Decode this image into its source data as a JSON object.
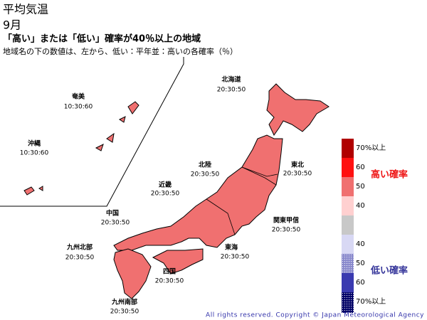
{
  "header": {
    "title": "平均気温",
    "month": "9月",
    "subtitle": "「高い」または「低い」確率が40％以上の地域",
    "note": "地域名の下の数値は、左から、低い：平年並：高いの各確率（％）"
  },
  "regions": [
    {
      "name": "北海道",
      "probs": "20:30:50"
    },
    {
      "name": "東北",
      "probs": "20:30:50"
    },
    {
      "name": "関東甲信",
      "probs": "20:30:50"
    },
    {
      "name": "東海",
      "probs": "20:30:50"
    },
    {
      "name": "北陸",
      "probs": "20:30:50"
    },
    {
      "name": "近畿",
      "probs": "20:30:50"
    },
    {
      "name": "中国",
      "probs": "20:30:50"
    },
    {
      "name": "四国",
      "probs": "20:30:50"
    },
    {
      "name": "九州北部",
      "probs": "20:30:50"
    },
    {
      "name": "九州南部",
      "probs": "20:30:50"
    },
    {
      "name": "奄美",
      "probs": "10:30:60"
    },
    {
      "name": "沖縄",
      "probs": "10:30:60"
    }
  ],
  "legend": {
    "high_title": "高い確率",
    "low_title": "低い確率",
    "high_labels": [
      "70%以上",
      "60",
      "50",
      "40"
    ],
    "low_labels": [
      "40",
      "50",
      "60",
      "70%以上"
    ]
  },
  "footer": {
    "copyright": "All rights reserved. Copyright © Japan Meteorological Agency"
  }
}
